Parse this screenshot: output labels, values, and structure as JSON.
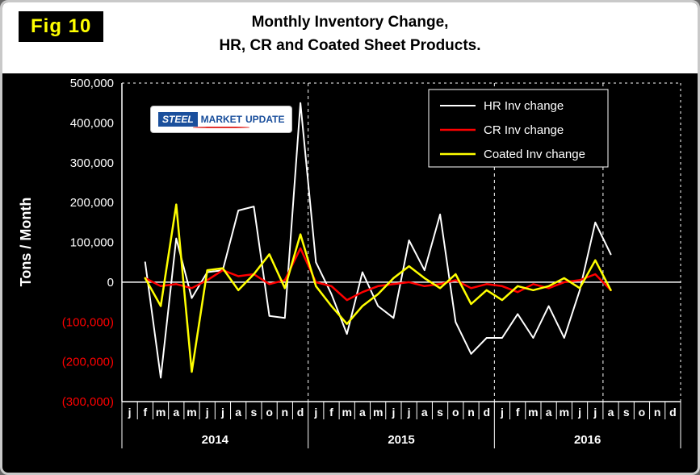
{
  "window": {
    "fig_label": "Fig 10",
    "title_line1": "Monthly Inventory Change,",
    "title_line2": "HR, CR and Coated Sheet  Products."
  },
  "ylabel": "Tons / Month",
  "logo": {
    "steel": "STEEL",
    "market": "MARKET",
    "update": "UPDATE"
  },
  "colors": {
    "background": "#000000",
    "title_band": "#ffffff",
    "fig_label_bg": "#000000",
    "fig_label_fg": "#ffff00",
    "axis_text": "#ffffff",
    "negative_tick_text": "#ff0000",
    "grid": "#ffffff"
  },
  "chart_data": {
    "type": "line",
    "title": "Monthly Inventory Change, HR, CR and Coated Sheet Products.",
    "ylabel": "Tons / Month",
    "ylim": [
      -300000,
      500000
    ],
    "ytick_step": 100000,
    "ytick_labels": [
      "500,000",
      "400,000",
      "300,000",
      "200,000",
      "100,000",
      "0",
      "(100,000)",
      "(200,000)",
      "(300,000)"
    ],
    "x_months": [
      "j",
      "f",
      "m",
      "a",
      "m",
      "j",
      "j",
      "a",
      "s",
      "o",
      "n",
      "d"
    ],
    "years": [
      "2014",
      "2015",
      "2016"
    ],
    "vline_month_indices": [
      12,
      24,
      31
    ],
    "legend_position": "top-right",
    "series": [
      {
        "id": "hr",
        "name": "HR Inv change",
        "color": "#ffffff",
        "width": 2,
        "values": [
          null,
          50000,
          -240000,
          110000,
          -40000,
          25000,
          30000,
          180000,
          190000,
          -85000,
          -90000,
          450000,
          50000,
          -30000,
          -130000,
          25000,
          -60000,
          -90000,
          105000,
          30000,
          170000,
          -100000,
          -180000,
          -140000,
          -140000,
          -80000,
          -140000,
          -60000,
          -140000,
          -20000,
          150000,
          70000,
          null,
          null,
          null,
          null
        ]
      },
      {
        "id": "cr",
        "name": "CR Inv change",
        "color": "#ff0000",
        "width": 2.5,
        "values": [
          null,
          10000,
          -10000,
          -5000,
          -15000,
          5000,
          30000,
          15000,
          20000,
          -5000,
          5000,
          85000,
          0,
          -10000,
          -45000,
          -25000,
          -10000,
          -5000,
          0,
          -10000,
          -5000,
          5000,
          -15000,
          -5000,
          -10000,
          -25000,
          -5000,
          -15000,
          0,
          5000,
          20000,
          -20000,
          null,
          null,
          null,
          null
        ]
      },
      {
        "id": "coated",
        "name": "Coated Inv change",
        "color": "#ffff00",
        "width": 2.5,
        "values": [
          null,
          10000,
          -60000,
          195000,
          -225000,
          30000,
          35000,
          -20000,
          20000,
          70000,
          -15000,
          120000,
          -10000,
          -60000,
          -105000,
          -60000,
          -30000,
          10000,
          40000,
          10000,
          -15000,
          20000,
          -55000,
          -20000,
          -45000,
          -10000,
          -20000,
          -10000,
          10000,
          -15000,
          55000,
          -20000,
          null,
          null,
          null,
          null
        ]
      }
    ]
  }
}
